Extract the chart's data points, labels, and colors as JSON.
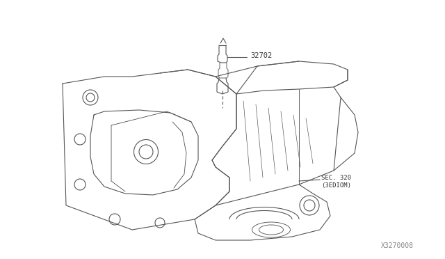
{
  "bg_color": "#ffffff",
  "line_color": "#555555",
  "label_32702": "32702",
  "label_sec": "SEC. 320",
  "label_sec2": "(3EDIOM)",
  "watermark": "X3270008",
  "figsize": [
    6.4,
    3.72
  ],
  "dpi": 100
}
